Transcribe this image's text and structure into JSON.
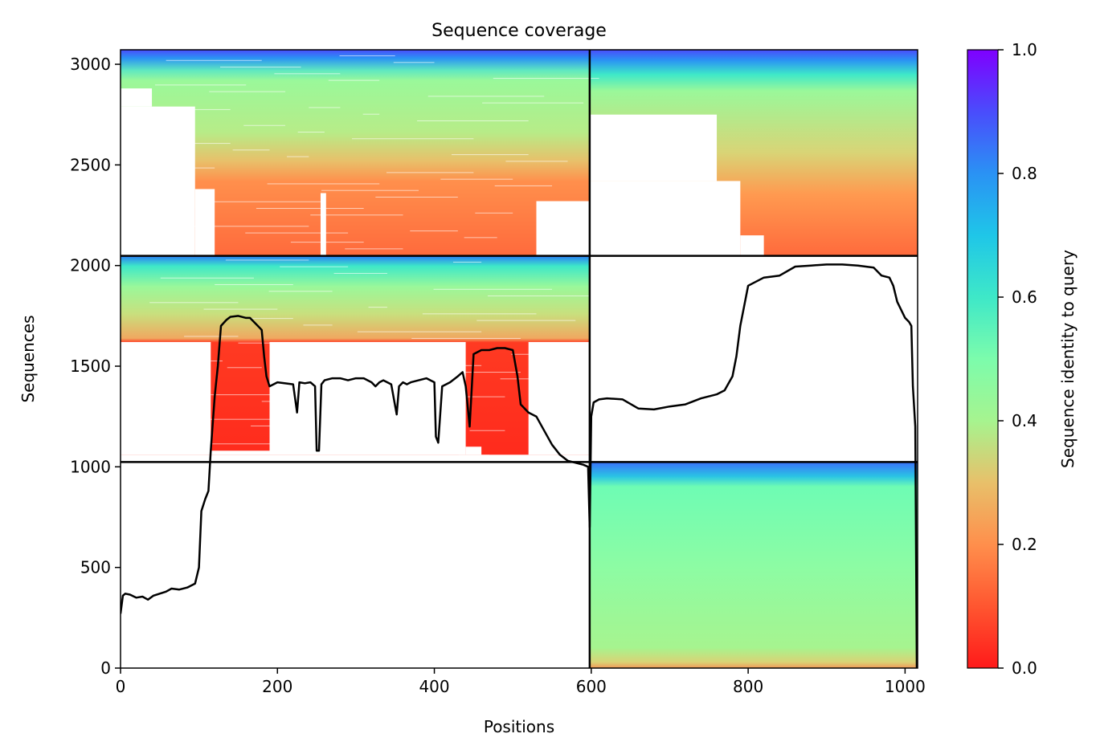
{
  "chart_data": {
    "type": "heatmap",
    "title": "Sequence coverage",
    "xlabel": "Positions",
    "ylabel": "Sequences",
    "xlim": [
      0,
      1016
    ],
    "ylim": [
      0,
      3072
    ],
    "x_ticks": [
      0,
      200,
      400,
      600,
      800,
      1000
    ],
    "y_ticks": [
      0,
      500,
      1000,
      1500,
      2000,
      2500,
      3000
    ],
    "x_tick_labels": [
      "0",
      "200",
      "400",
      "600",
      "800",
      "1000"
    ],
    "y_tick_labels": [
      "0",
      "500",
      "1000",
      "1500",
      "2000",
      "2500",
      "3000"
    ],
    "colorbar": {
      "label": "Sequence identity to query",
      "range": [
        0,
        1
      ],
      "colormap": "rainbow_r",
      "ticks": [
        0.0,
        0.2,
        0.4,
        0.6,
        0.8,
        1.0
      ],
      "tick_labels": [
        "0.0",
        "0.2",
        "0.4",
        "0.6",
        "0.8",
        "1.0"
      ]
    },
    "chain_boundaries": {
      "x": [
        598
      ],
      "y": [
        1024,
        2048
      ]
    },
    "blocks": [
      {
        "name": "chain1-pair",
        "x0": 0,
        "x1": 598,
        "y0": 2048,
        "y1": 3072
      },
      {
        "name": "chain2-pair",
        "x0": 598,
        "x1": 1016,
        "y0": 2048,
        "y1": 3072
      },
      {
        "name": "chain1-unpaired",
        "x0": 0,
        "x1": 598,
        "y0": 1024,
        "y1": 2048
      },
      {
        "name": "chain2-unpaired",
        "x0": 598,
        "x1": 1016,
        "y0": 0,
        "y1": 1024
      }
    ],
    "coverage_line": {
      "x": [
        0,
        3,
        6,
        12,
        20,
        28,
        35,
        42,
        50,
        58,
        65,
        75,
        85,
        95,
        100,
        103,
        108,
        112,
        115,
        120,
        124,
        128,
        135,
        140,
        150,
        160,
        165,
        170,
        175,
        180,
        183,
        186,
        190,
        200,
        220,
        225,
        228,
        235,
        242,
        248,
        250,
        253,
        256,
        260,
        270,
        280,
        290,
        300,
        310,
        320,
        325,
        330,
        335,
        345,
        352,
        355,
        360,
        365,
        370,
        380,
        390,
        400,
        402,
        405,
        410,
        420,
        430,
        436,
        440,
        445,
        450,
        460,
        470,
        480,
        490,
        500,
        506,
        510,
        520,
        530,
        540,
        550,
        560,
        570,
        580,
        590,
        596,
        598,
        600,
        603,
        610,
        620,
        640,
        660,
        680,
        700,
        720,
        740,
        760,
        770,
        780,
        785,
        790,
        800,
        820,
        840,
        860,
        880,
        900,
        920,
        940,
        960,
        970,
        980,
        985,
        990,
        1000,
        1005,
        1008,
        1010,
        1013,
        1015
      ],
      "y": [
        270,
        360,
        370,
        365,
        350,
        355,
        340,
        360,
        370,
        380,
        395,
        390,
        400,
        420,
        500,
        780,
        840,
        880,
        1080,
        1350,
        1500,
        1700,
        1730,
        1745,
        1750,
        1740,
        1740,
        1720,
        1700,
        1680,
        1550,
        1450,
        1400,
        1420,
        1410,
        1270,
        1420,
        1415,
        1420,
        1400,
        1080,
        1080,
        1410,
        1430,
        1440,
        1440,
        1430,
        1440,
        1440,
        1420,
        1400,
        1420,
        1430,
        1410,
        1260,
        1400,
        1420,
        1410,
        1420,
        1430,
        1440,
        1420,
        1150,
        1120,
        1400,
        1420,
        1450,
        1470,
        1400,
        1200,
        1560,
        1580,
        1580,
        1590,
        1590,
        1580,
        1450,
        1310,
        1270,
        1250,
        1180,
        1110,
        1060,
        1030,
        1020,
        1010,
        1000,
        700,
        1250,
        1320,
        1335,
        1340,
        1335,
        1290,
        1285,
        1300,
        1310,
        1340,
        1360,
        1380,
        1450,
        1550,
        1700,
        1900,
        1940,
        1950,
        1995,
        2000,
        2005,
        2005,
        2000,
        1990,
        1950,
        1940,
        1900,
        1820,
        1740,
        1720,
        1700,
        1400,
        1200,
        0
      ]
    }
  }
}
